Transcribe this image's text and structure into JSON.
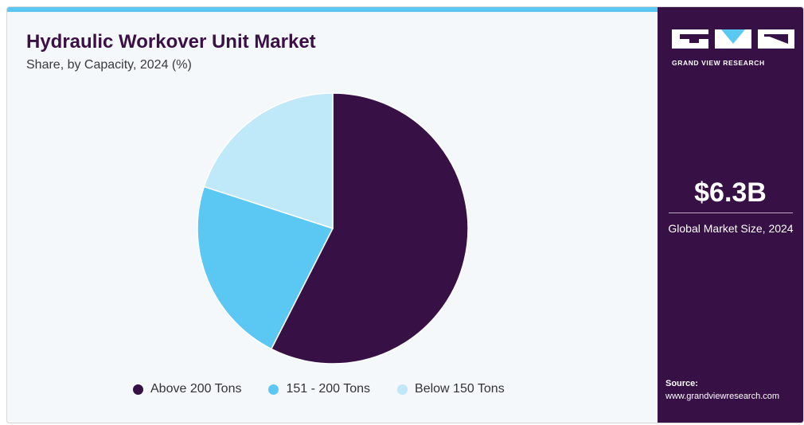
{
  "header": {
    "title": "Hydraulic Workover Unit Market",
    "subtitle": "Share, by Capacity, 2024 (%)"
  },
  "chart_data": {
    "type": "pie",
    "title": "Hydraulic Workover Unit Market",
    "subtitle": "Share, by Capacity, 2024 (%)",
    "categories": [
      "Above 200 Tons",
      "151 - 200 Tons",
      "Below 150 Tons"
    ],
    "values": [
      57.5,
      22.5,
      20.0
    ],
    "colors": [
      "#371046",
      "#5bc8f4",
      "#bfe8f9"
    ],
    "start_angle": "12 o'clock",
    "direction": "clockwise",
    "legend_position": "bottom"
  },
  "sidebar": {
    "brand": "GRAND VIEW RESEARCH",
    "logo_icon": "gvr-logo-icon",
    "market_size_value": "$6.3B",
    "market_size_label": "Global Market Size, 2024",
    "source_label": "Source:",
    "source_url": "www.grandviewresearch.com"
  },
  "colors": {
    "accent_bar": "#5bc8f4",
    "sidebar_bg": "#371046",
    "panel_bg": "#f4f8fb"
  }
}
